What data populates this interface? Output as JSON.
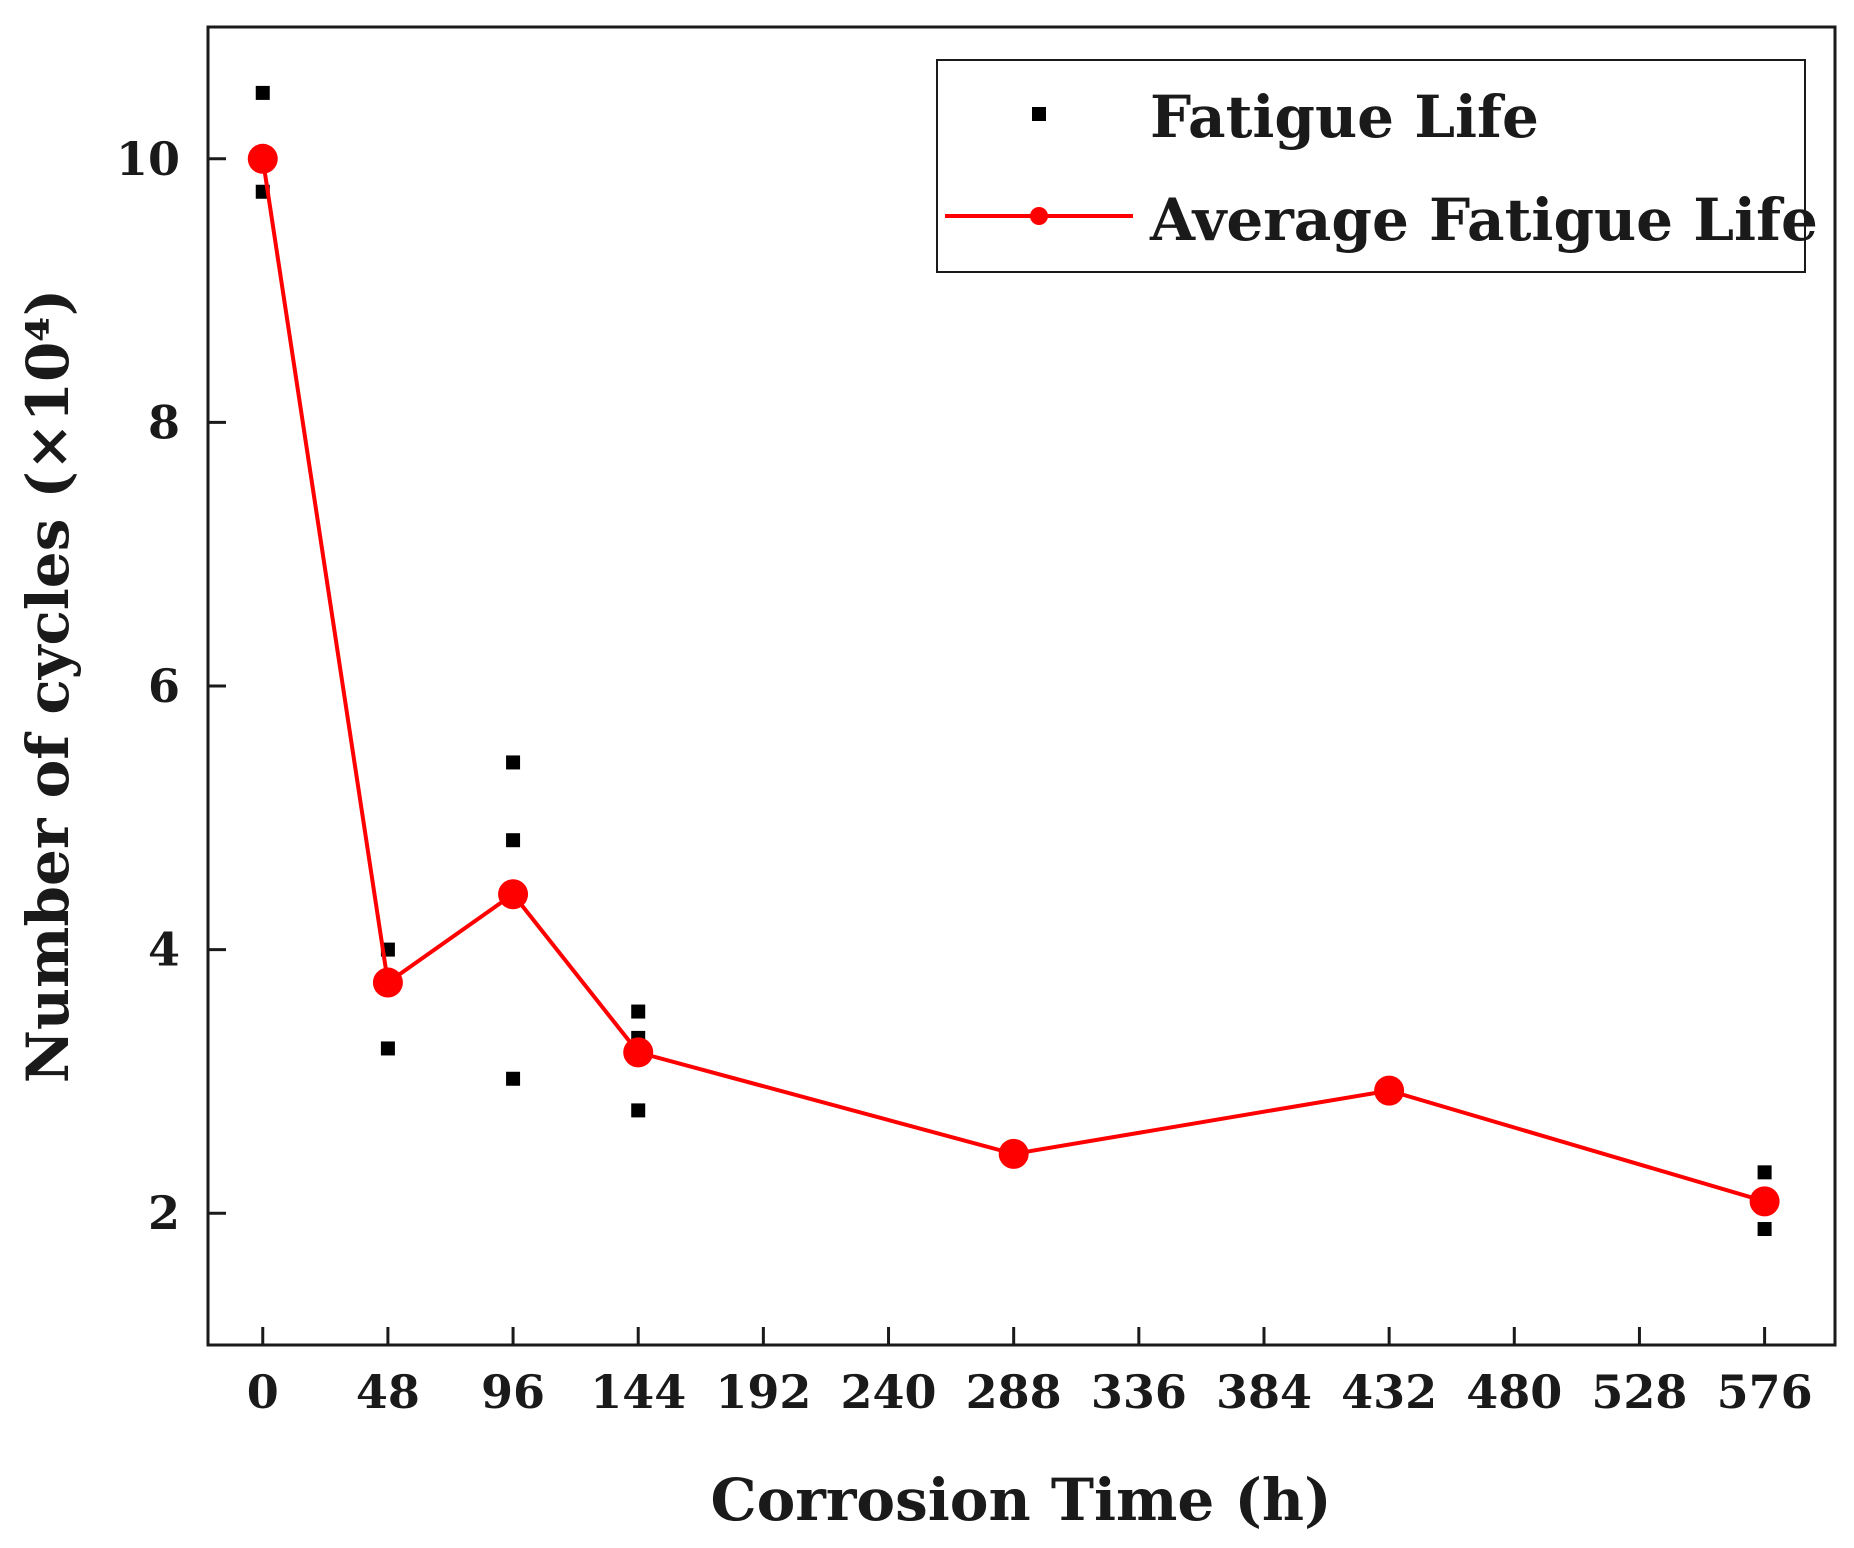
{
  "chart_data": {
    "type": "scatter",
    "title": "",
    "xlabel": "Corrosion Time (h)",
    "ylabel": "Number of cycles (×10⁴)",
    "xlim": [
      -21,
      603
    ],
    "ylim": [
      1.0,
      11.0
    ],
    "x_ticks": [
      0,
      48,
      96,
      144,
      192,
      240,
      288,
      336,
      384,
      432,
      480,
      528,
      576
    ],
    "x_tick_labels": [
      "0",
      "48",
      "96",
      "144",
      "192",
      "240",
      "288",
      "336",
      "384",
      "432",
      "480",
      "528",
      "576"
    ],
    "y_ticks": [
      2,
      4,
      6,
      8,
      10
    ],
    "y_tick_labels": [
      "2",
      "4",
      "6",
      "8",
      "10"
    ],
    "legend_position": "top-right",
    "series": [
      {
        "name": "Fatigue Life",
        "kind": "scatter",
        "marker": "square",
        "color": "#000000",
        "x": [
          0,
          0,
          48,
          48,
          96,
          96,
          96,
          144,
          144,
          144,
          288,
          576,
          576
        ],
        "y": [
          10.5,
          9.75,
          4.0,
          3.25,
          5.42,
          4.83,
          3.02,
          3.53,
          3.33,
          2.78,
          2.42,
          2.31,
          1.88
        ]
      },
      {
        "name": "Average Fatigue Life",
        "kind": "line",
        "marker": "circle",
        "color": "#ff0000",
        "x": [
          0,
          48,
          96,
          144,
          288,
          432,
          576
        ],
        "y": [
          10.0,
          3.75,
          4.42,
          3.22,
          2.45,
          2.93,
          2.09
        ]
      }
    ]
  }
}
